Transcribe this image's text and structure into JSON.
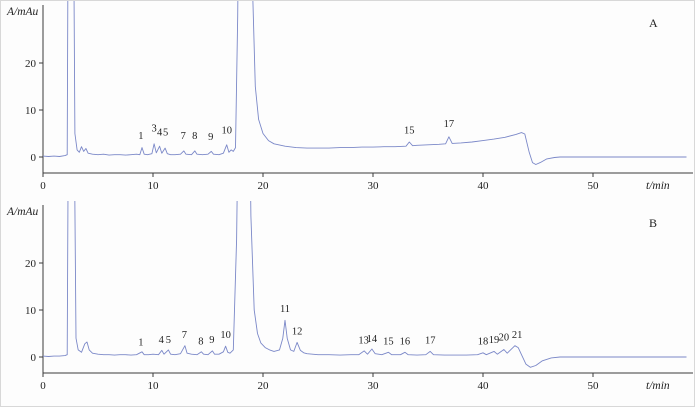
{
  "figure": {
    "background": "#fdfdfd"
  },
  "chart_data": [
    {
      "type": "line",
      "panel_label": "A",
      "x_axis_label": "t/min",
      "y_axis_label": "A/mAu",
      "x_ticks": [
        0,
        10,
        20,
        30,
        40,
        50
      ],
      "y_ticks": [
        0,
        10,
        20
      ],
      "x_range": [
        0,
        58.5
      ],
      "y_range": [
        -3.5,
        32
      ],
      "grid": "off",
      "line_color": "#7b88c8",
      "axis_color": "#3a3a3a",
      "text_color": "#222222",
      "peaks": [
        {
          "label": "1",
          "t": 8.9,
          "y": 3.4
        },
        {
          "label": "3",
          "t": 10.1,
          "y": 5.0
        },
        {
          "label": "4",
          "t": 10.6,
          "y": 4.2
        },
        {
          "label": "5",
          "t": 11.15,
          "y": 4.2
        },
        {
          "label": "7",
          "t": 12.75,
          "y": 3.4
        },
        {
          "label": "8",
          "t": 13.8,
          "y": 3.4
        },
        {
          "label": "9",
          "t": 15.25,
          "y": 3.2
        },
        {
          "label": "10",
          "t": 16.7,
          "y": 4.6
        },
        {
          "label": "15",
          "t": 33.3,
          "y": 4.6
        },
        {
          "label": "17",
          "t": 36.9,
          "y": 6.0
        }
      ],
      "trace": [
        [
          0,
          0.2
        ],
        [
          0.5,
          0.1
        ],
        [
          1,
          0.2
        ],
        [
          1.5,
          0.1
        ],
        [
          2.0,
          0.3
        ],
        [
          2.2,
          0.5
        ],
        [
          2.3,
          60
        ],
        [
          2.5,
          95
        ],
        [
          2.7,
          80
        ],
        [
          2.9,
          5
        ],
        [
          3.1,
          1.5
        ],
        [
          3.3,
          1.0
        ],
        [
          3.5,
          2.2
        ],
        [
          3.7,
          1.2
        ],
        [
          3.9,
          1.8
        ],
        [
          4.1,
          0.8
        ],
        [
          4.5,
          0.6
        ],
        [
          5,
          0.5
        ],
        [
          5.5,
          0.6
        ],
        [
          6,
          0.4
        ],
        [
          6.5,
          0.5
        ],
        [
          7,
          0.5
        ],
        [
          7.5,
          0.4
        ],
        [
          8,
          0.5
        ],
        [
          8.5,
          0.6
        ],
        [
          8.8,
          0.5
        ],
        [
          9.0,
          2.0
        ],
        [
          9.2,
          0.6
        ],
        [
          9.5,
          0.5
        ],
        [
          9.9,
          0.7
        ],
        [
          10.1,
          2.8
        ],
        [
          10.3,
          0.9
        ],
        [
          10.6,
          2.3
        ],
        [
          10.8,
          0.8
        ],
        [
          11.1,
          1.9
        ],
        [
          11.3,
          0.7
        ],
        [
          11.6,
          0.5
        ],
        [
          12.0,
          0.5
        ],
        [
          12.5,
          0.6
        ],
        [
          12.8,
          1.3
        ],
        [
          13.0,
          0.6
        ],
        [
          13.5,
          0.5
        ],
        [
          13.8,
          1.3
        ],
        [
          14.0,
          0.6
        ],
        [
          14.5,
          0.5
        ],
        [
          15.0,
          0.6
        ],
        [
          15.3,
          1.2
        ],
        [
          15.5,
          0.6
        ],
        [
          16.0,
          0.5
        ],
        [
          16.4,
          0.8
        ],
        [
          16.7,
          2.6
        ],
        [
          16.9,
          1.0
        ],
        [
          17.1,
          1.5
        ],
        [
          17.3,
          1.2
        ],
        [
          17.5,
          2.0
        ],
        [
          17.7,
          30
        ],
        [
          17.9,
          80
        ],
        [
          18.3,
          95
        ],
        [
          18.7,
          90
        ],
        [
          19.0,
          40
        ],
        [
          19.3,
          15
        ],
        [
          19.6,
          8
        ],
        [
          20.0,
          5
        ],
        [
          20.5,
          3.5
        ],
        [
          21,
          2.8
        ],
        [
          22,
          2.3
        ],
        [
          23,
          2.0
        ],
        [
          24,
          1.9
        ],
        [
          25,
          1.9
        ],
        [
          26,
          1.9
        ],
        [
          27,
          2.0
        ],
        [
          28,
          2.0
        ],
        [
          29,
          2.1
        ],
        [
          30,
          2.1
        ],
        [
          31,
          2.2
        ],
        [
          32,
          2.2
        ],
        [
          33,
          2.3
        ],
        [
          33.3,
          3.2
        ],
        [
          33.6,
          2.4
        ],
        [
          34,
          2.5
        ],
        [
          35,
          2.6
        ],
        [
          36,
          2.7
        ],
        [
          36.6,
          2.8
        ],
        [
          36.9,
          4.3
        ],
        [
          37.2,
          2.9
        ],
        [
          38,
          3.0
        ],
        [
          39,
          3.2
        ],
        [
          40,
          3.5
        ],
        [
          41,
          3.8
        ],
        [
          42,
          4.2
        ],
        [
          43,
          4.8
        ],
        [
          43.5,
          5.2
        ],
        [
          43.8,
          4.9
        ],
        [
          44.2,
          1.0
        ],
        [
          44.5,
          -1.2
        ],
        [
          44.8,
          -1.6
        ],
        [
          45.2,
          -1.2
        ],
        [
          45.8,
          -0.4
        ],
        [
          46.5,
          -0.1
        ],
        [
          47,
          0
        ],
        [
          48,
          0
        ],
        [
          50,
          0
        ],
        [
          52,
          0
        ],
        [
          54,
          0
        ],
        [
          58.5,
          0
        ]
      ]
    },
    {
      "type": "line",
      "panel_label": "B",
      "x_axis_label": "t/min",
      "y_axis_label": "A/mAu",
      "x_ticks": [
        0,
        10,
        20,
        30,
        40,
        50
      ],
      "y_ticks": [
        0,
        10,
        20
      ],
      "x_range": [
        0,
        58.5
      ],
      "y_range": [
        -3.5,
        32
      ],
      "grid": "off",
      "line_color": "#7b88c8",
      "axis_color": "#3a3a3a",
      "text_color": "#222222",
      "peaks": [
        {
          "label": "1",
          "t": 8.9,
          "y": 2.0
        },
        {
          "label": "4",
          "t": 10.75,
          "y": 2.6
        },
        {
          "label": "5",
          "t": 11.4,
          "y": 2.6
        },
        {
          "label": "7",
          "t": 12.85,
          "y": 3.6
        },
        {
          "label": "8",
          "t": 14.35,
          "y": 2.2
        },
        {
          "label": "9",
          "t": 15.35,
          "y": 2.6
        },
        {
          "label": "10",
          "t": 16.6,
          "y": 3.6
        },
        {
          "label": "11",
          "t": 22.0,
          "y": 9.2
        },
        {
          "label": "12",
          "t": 23.1,
          "y": 4.4
        },
        {
          "label": "13",
          "t": 29.15,
          "y": 2.4
        },
        {
          "label": "14",
          "t": 29.9,
          "y": 2.8
        },
        {
          "label": "15",
          "t": 31.4,
          "y": 2.2
        },
        {
          "label": "16",
          "t": 32.9,
          "y": 2.2
        },
        {
          "label": "17",
          "t": 35.2,
          "y": 2.5
        },
        {
          "label": "18",
          "t": 40.0,
          "y": 2.2
        },
        {
          "label": "19",
          "t": 41.0,
          "y": 2.6
        },
        {
          "label": "20",
          "t": 41.9,
          "y": 3.1
        },
        {
          "label": "21",
          "t": 43.1,
          "y": 3.6
        }
      ],
      "trace": [
        [
          0,
          0.2
        ],
        [
          0.5,
          0.1
        ],
        [
          1,
          0.2
        ],
        [
          1.5,
          0.2
        ],
        [
          2.0,
          0.3
        ],
        [
          2.2,
          0.5
        ],
        [
          2.35,
          70
        ],
        [
          2.6,
          95
        ],
        [
          2.8,
          60
        ],
        [
          3.0,
          4
        ],
        [
          3.2,
          1.5
        ],
        [
          3.5,
          1.0
        ],
        [
          3.8,
          2.8
        ],
        [
          4.0,
          3.2
        ],
        [
          4.2,
          1.5
        ],
        [
          4.5,
          0.8
        ],
        [
          5,
          0.6
        ],
        [
          5.5,
          0.5
        ],
        [
          6,
          0.5
        ],
        [
          6.5,
          0.4
        ],
        [
          7,
          0.5
        ],
        [
          7.5,
          0.5
        ],
        [
          8,
          0.4
        ],
        [
          8.5,
          0.5
        ],
        [
          9.0,
          1.1
        ],
        [
          9.2,
          0.5
        ],
        [
          9.6,
          0.5
        ],
        [
          10.0,
          0.6
        ],
        [
          10.5,
          0.5
        ],
        [
          10.8,
          1.4
        ],
        [
          11.0,
          0.6
        ],
        [
          11.4,
          1.5
        ],
        [
          11.6,
          0.6
        ],
        [
          12.0,
          0.5
        ],
        [
          12.5,
          0.7
        ],
        [
          12.9,
          2.4
        ],
        [
          13.1,
          0.8
        ],
        [
          13.5,
          0.6
        ],
        [
          14.0,
          0.5
        ],
        [
          14.4,
          1.1
        ],
        [
          14.6,
          0.6
        ],
        [
          15.0,
          0.5
        ],
        [
          15.4,
          1.3
        ],
        [
          15.6,
          0.6
        ],
        [
          16.0,
          0.6
        ],
        [
          16.4,
          1.1
        ],
        [
          16.6,
          2.3
        ],
        [
          16.8,
          1.0
        ],
        [
          17.0,
          0.8
        ],
        [
          17.3,
          1.5
        ],
        [
          17.6,
          25
        ],
        [
          17.9,
          80
        ],
        [
          18.3,
          95
        ],
        [
          18.6,
          88
        ],
        [
          18.9,
          30
        ],
        [
          19.2,
          10
        ],
        [
          19.5,
          5
        ],
        [
          19.8,
          3
        ],
        [
          20.2,
          2
        ],
        [
          20.6,
          1.5
        ],
        [
          21.0,
          1.2
        ],
        [
          21.5,
          1.5
        ],
        [
          21.8,
          4
        ],
        [
          22.0,
          7.8
        ],
        [
          22.2,
          4
        ],
        [
          22.5,
          1.5
        ],
        [
          22.8,
          1.2
        ],
        [
          23.1,
          3.1
        ],
        [
          23.4,
          1.4
        ],
        [
          23.7,
          0.9
        ],
        [
          24,
          0.7
        ],
        [
          24.5,
          0.6
        ],
        [
          25,
          0.5
        ],
        [
          26,
          0.5
        ],
        [
          27,
          0.4
        ],
        [
          28,
          0.5
        ],
        [
          28.7,
          0.5
        ],
        [
          29.2,
          1.3
        ],
        [
          29.5,
          0.6
        ],
        [
          29.9,
          1.7
        ],
        [
          30.2,
          0.7
        ],
        [
          30.8,
          0.5
        ],
        [
          31.4,
          1.0
        ],
        [
          31.7,
          0.5
        ],
        [
          32.5,
          0.5
        ],
        [
          32.9,
          1.0
        ],
        [
          33.2,
          0.5
        ],
        [
          34,
          0.4
        ],
        [
          34.8,
          0.5
        ],
        [
          35.2,
          1.2
        ],
        [
          35.5,
          0.5
        ],
        [
          36.5,
          0.4
        ],
        [
          37.5,
          0.4
        ],
        [
          38.5,
          0.4
        ],
        [
          39.5,
          0.5
        ],
        [
          40.0,
          0.9
        ],
        [
          40.3,
          0.5
        ],
        [
          41.0,
          1.2
        ],
        [
          41.3,
          0.6
        ],
        [
          41.9,
          1.6
        ],
        [
          42.2,
          0.8
        ],
        [
          42.9,
          2.4
        ],
        [
          43.2,
          2.0
        ],
        [
          43.5,
          0.5
        ],
        [
          43.9,
          -1.5
        ],
        [
          44.3,
          -2.2
        ],
        [
          44.8,
          -1.8
        ],
        [
          45.4,
          -0.8
        ],
        [
          46.2,
          -0.2
        ],
        [
          47,
          0
        ],
        [
          48,
          0
        ],
        [
          50,
          0
        ],
        [
          52,
          0
        ],
        [
          54,
          0
        ],
        [
          58.5,
          0
        ]
      ]
    }
  ]
}
